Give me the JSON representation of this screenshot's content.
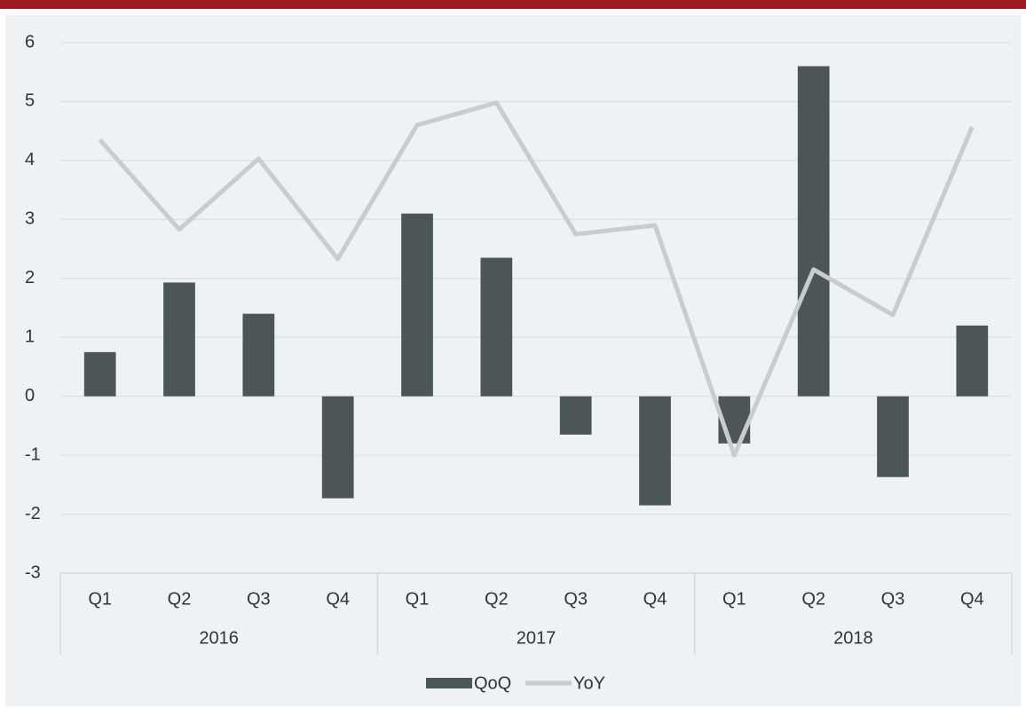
{
  "chart_data": {
    "type": "bar_line",
    "categories": [
      "Q1",
      "Q2",
      "Q3",
      "Q4",
      "Q1",
      "Q2",
      "Q3",
      "Q4",
      "Q1",
      "Q2",
      "Q3",
      "Q4"
    ],
    "group_labels": [
      "2016",
      "2017",
      "2018"
    ],
    "series": [
      {
        "name": "QoQ",
        "type": "bar",
        "color": "#4d5656",
        "values": [
          0.75,
          1.93,
          1.4,
          -1.73,
          3.1,
          2.35,
          -0.65,
          -1.85,
          -0.8,
          5.6,
          -1.37,
          1.2
        ]
      },
      {
        "name": "YoY",
        "type": "line",
        "color": "#c8cbd0",
        "values": [
          4.35,
          2.83,
          4.03,
          2.33,
          4.6,
          4.98,
          2.75,
          2.9,
          -1.0,
          2.15,
          1.38,
          4.57
        ]
      }
    ],
    "ylim": [
      -3,
      6
    ],
    "yticks": [
      -3,
      -2,
      -1,
      0,
      1,
      2,
      3,
      4,
      5,
      6
    ],
    "grid": true,
    "legend": "bottom"
  }
}
